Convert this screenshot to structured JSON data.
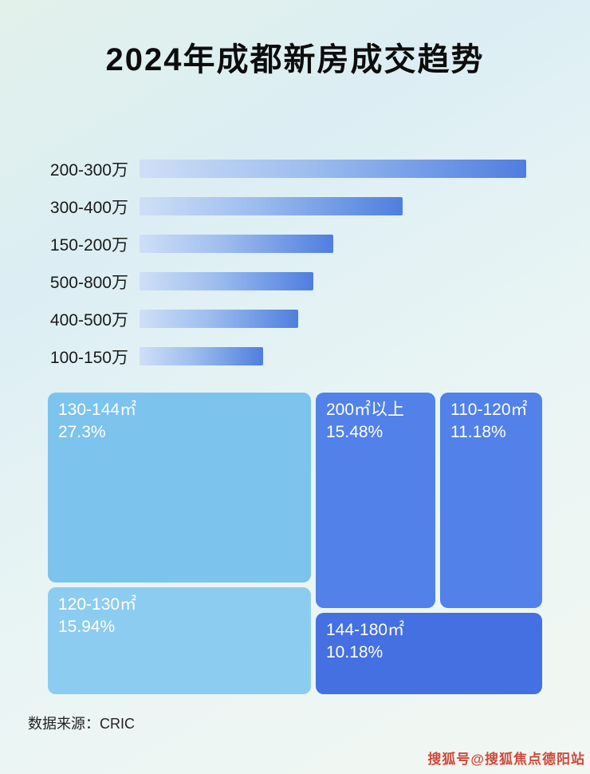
{
  "page": {
    "title": "2024年成都新房成交趋势",
    "source_label": "数据来源：CRIC",
    "watermark": "搜狐号@搜狐焦点德阳站"
  },
  "colors": {
    "bar_gradient_start": "#cfdff7",
    "bar_gradient_end": "#4f7ede",
    "treemap_light_1": "#7cc3ee",
    "treemap_light_2": "#8cccf0",
    "treemap_blue_1": "#5181e9",
    "treemap_blue_2": "#5181e9",
    "treemap_blue_3": "#4470e2",
    "watermark_red": "#cf4a3c"
  },
  "chart_data": [
    {
      "type": "bar",
      "orientation": "horizontal",
      "title": "2024年成都新房成交趋势",
      "categories": [
        "200-300万",
        "300-400万",
        "150-200万",
        "500-800万",
        "400-500万",
        "100-150万"
      ],
      "values": [
        100,
        68,
        50,
        45,
        41,
        32
      ],
      "value_note": "no numeric labels shown; values are bar lengths as percent of the longest bar, estimated from pixels",
      "xlabel": "",
      "ylabel": "",
      "grid": false,
      "legend": false
    },
    {
      "type": "treemap",
      "items": [
        {
          "label": "130-144㎡",
          "percent": "27.3%"
        },
        {
          "label": "120-130㎡",
          "percent": "15.94%"
        },
        {
          "label": "200㎡以上",
          "percent": "15.48%"
        },
        {
          "label": "110-120㎡",
          "percent": "11.18%"
        },
        {
          "label": "144-180㎡",
          "percent": "10.18%"
        }
      ]
    }
  ]
}
